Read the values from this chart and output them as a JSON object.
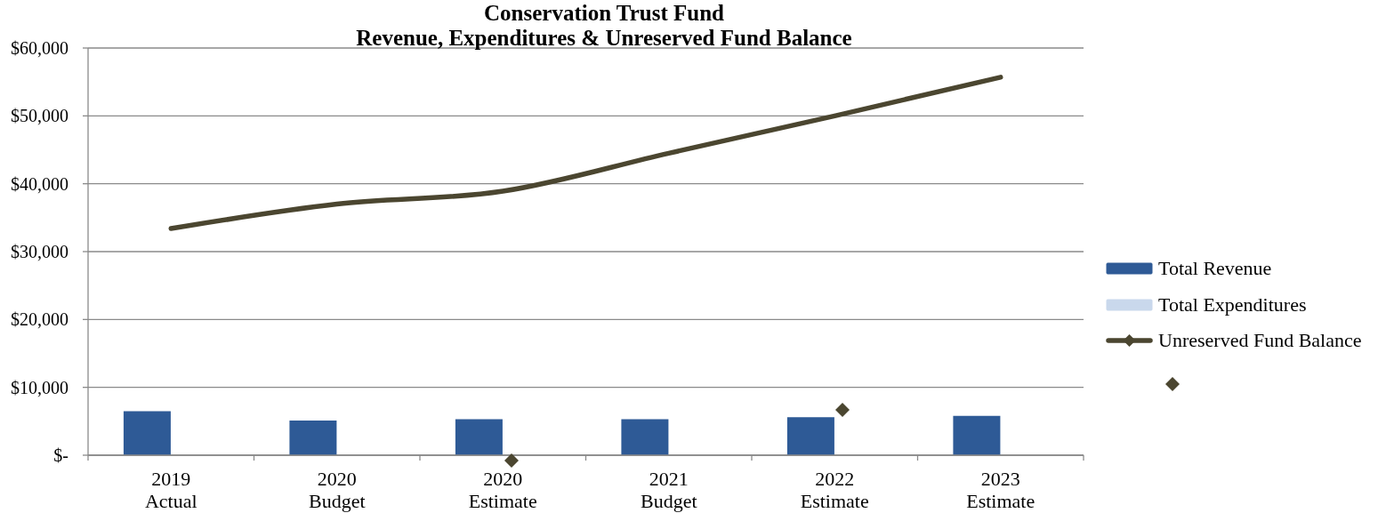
{
  "chart_data": {
    "type": "bar",
    "title": "Conservation Trust Fund",
    "subtitle": "Revenue, Expenditures & Unreserved Fund Balance",
    "categories": [
      "2019\nActual",
      "2020\nBudget",
      "2020\nEstimate",
      "2021\nBudget",
      "2022\nEstimate",
      "2023\nEstimate"
    ],
    "series": [
      {
        "name": "Total Revenue",
        "color": "#2e5a96",
        "values": [
          6500,
          5100,
          5300,
          5300,
          5600,
          5800
        ]
      },
      {
        "name": "Total Expenditures",
        "color": "#c9d8ec",
        "values": [
          null,
          null,
          null,
          null,
          null,
          null
        ]
      },
      {
        "name": "Unreserved Fund Balance",
        "type": "line",
        "color": "#4b4630",
        "values": [
          33400,
          37000,
          38900,
          44500,
          50000,
          55700
        ]
      }
    ],
    "ylim": [
      0,
      60000
    ],
    "yticks": [
      {
        "value": 0,
        "label": "$-"
      },
      {
        "value": 10000,
        "label": "$10,000"
      },
      {
        "value": 20000,
        "label": "$20,000"
      },
      {
        "value": 30000,
        "label": "$30,000"
      },
      {
        "value": 40000,
        "label": "$40,000"
      },
      {
        "value": 50000,
        "label": "$50,000"
      },
      {
        "value": 60000,
        "label": "$60,000"
      }
    ],
    "grid": "y",
    "legend": "right"
  }
}
